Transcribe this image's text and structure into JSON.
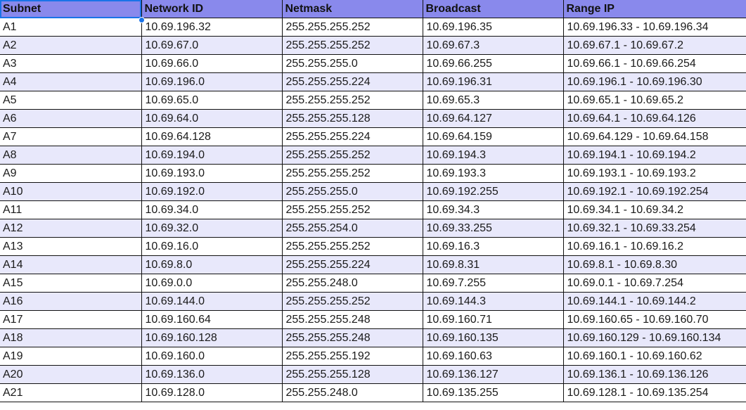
{
  "columns": [
    "Subnet",
    "Network ID",
    "Netmask",
    "Broadcast",
    "Range IP"
  ],
  "rows": [
    [
      "A1",
      "10.69.196.32",
      "255.255.255.252",
      "10.69.196.35",
      "10.69.196.33 - 10.69.196.34"
    ],
    [
      "A2",
      "10.69.67.0",
      "255.255.255.252",
      "10.69.67.3",
      "10.69.67.1 - 10.69.67.2"
    ],
    [
      "A3",
      "10.69.66.0",
      "255.255.255.0",
      "10.69.66.255",
      "10.69.66.1 - 10.69.66.254"
    ],
    [
      "A4",
      "10.69.196.0",
      "255.255.255.224",
      "10.69.196.31",
      "10.69.196.1 - 10.69.196.30"
    ],
    [
      "A5",
      "10.69.65.0",
      "255.255.255.252",
      "10.69.65.3",
      "10.69.65.1 - 10.69.65.2"
    ],
    [
      "A6",
      "10.69.64.0",
      "255.255.255.128",
      "10.69.64.127",
      "10.69.64.1 - 10.69.64.126"
    ],
    [
      "A7",
      "10.69.64.128",
      "255.255.255.224",
      "10.69.64.159",
      "10.69.64.129 - 10.69.64.158"
    ],
    [
      "A8",
      "10.69.194.0",
      "255.255.255.252",
      "10.69.194.3",
      "10.69.194.1 - 10.69.194.2"
    ],
    [
      "A9",
      "10.69.193.0",
      "255.255.255.252",
      "10.69.193.3",
      "10.69.193.1 - 10.69.193.2"
    ],
    [
      "A10",
      "10.69.192.0",
      "255.255.255.0",
      "10.69.192.255",
      "10.69.192.1 - 10.69.192.254"
    ],
    [
      "A11",
      "10.69.34.0",
      "255.255.255.252",
      "10.69.34.3",
      "10.69.34.1 - 10.69.34.2"
    ],
    [
      "A12",
      "10.69.32.0",
      "255.255.254.0",
      "10.69.33.255",
      "10.69.32.1 - 10.69.33.254"
    ],
    [
      "A13",
      "10.69.16.0",
      "255.255.255.252",
      "10.69.16.3",
      "10.69.16.1 - 10.69.16.2"
    ],
    [
      "A14",
      "10.69.8.0",
      "255.255.255.224",
      "10.69.8.31",
      "10.69.8.1 - 10.69.8.30"
    ],
    [
      "A15",
      "10.69.0.0",
      "255.255.248.0",
      "10.69.7.255",
      "10.69.0.1 - 10.69.7.254"
    ],
    [
      "A16",
      "10.69.144.0",
      "255.255.255.252",
      "10.69.144.3",
      "10.69.144.1 - 10.69.144.2"
    ],
    [
      "A17",
      "10.69.160.64",
      "255.255.255.248",
      "10.69.160.71",
      "10.69.160.65 - 10.69.160.70"
    ],
    [
      "A18",
      "10.69.160.128",
      "255.255.255.248",
      "10.69.160.135",
      "10.69.160.129 - 10.69.160.134"
    ],
    [
      "A19",
      "10.69.160.0",
      "255.255.255.192",
      "10.69.160.63",
      "10.69.160.1 - 10.69.160.62"
    ],
    [
      "A20",
      "10.69.136.0",
      "255.255.255.128",
      "10.69.136.127",
      "10.69.136.1 - 10.69.136.126"
    ],
    [
      "A21",
      "10.69.128.0",
      "255.255.248.0",
      "10.69.135.255",
      "10.69.128.1 - 10.69.135.254"
    ]
  ],
  "colors": {
    "header_bg": "#8989ec",
    "band_bg": "#e8e8fb",
    "selection": "#1a73e8"
  }
}
